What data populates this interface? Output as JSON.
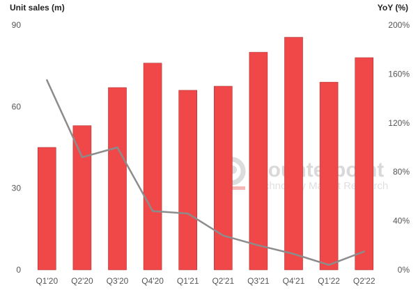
{
  "chart_data": {
    "type": "bar",
    "title": "",
    "xlabel": "",
    "ylabel": "Unit sales (m)",
    "y2label": "YoY (%)",
    "ylim": [
      0,
      90
    ],
    "y2lim": [
      0,
      200
    ],
    "yticks": [
      "0",
      "30",
      "60",
      "90"
    ],
    "y2ticks": [
      "0%",
      "40%",
      "80%",
      "120%",
      "160%",
      "200%"
    ],
    "categories": [
      "Q1'20",
      "Q2'20",
      "Q3'20",
      "Q4'20",
      "Q1'21",
      "Q2'21",
      "Q3'21",
      "Q4'21",
      "Q1'22",
      "Q2'22"
    ],
    "series": [
      {
        "name": "Unit sales (m)",
        "type": "bar",
        "axis": "left",
        "color": "#f04848",
        "values": [
          45,
          53,
          67,
          76,
          66,
          67.5,
          80,
          85.5,
          69,
          78
        ]
      },
      {
        "name": "YoY (%)",
        "type": "line",
        "axis": "right",
        "color": "#8c8c8c",
        "values": [
          155,
          92,
          100,
          48,
          46,
          28,
          20,
          13,
          4,
          15
        ]
      }
    ],
    "grid": false,
    "legend": "none"
  },
  "watermark": {
    "brand": "Counterpoint",
    "tagline": "Technology Market Research"
  }
}
